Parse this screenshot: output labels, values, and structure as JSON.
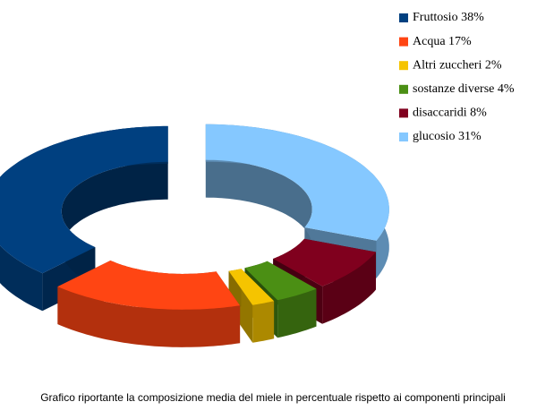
{
  "chart_data": {
    "type": "doughnut3d",
    "caption": "Grafico riportante la composizione media del miele in percentuale rispetto ai componenti principali",
    "categories": [
      "Fruttosio 38%",
      "Acqua 17%",
      "Altri zuccheri 2%",
      "sostanze diverse 4%",
      "disaccaridi 8%",
      "glucosio 31%"
    ],
    "values": [
      38,
      17,
      2,
      4,
      8,
      31
    ],
    "colors": [
      "#004080",
      "#ff4513",
      "#f5c400",
      "#4b8f14",
      "#80001e",
      "#85c8ff"
    ],
    "legend": "top-right"
  }
}
